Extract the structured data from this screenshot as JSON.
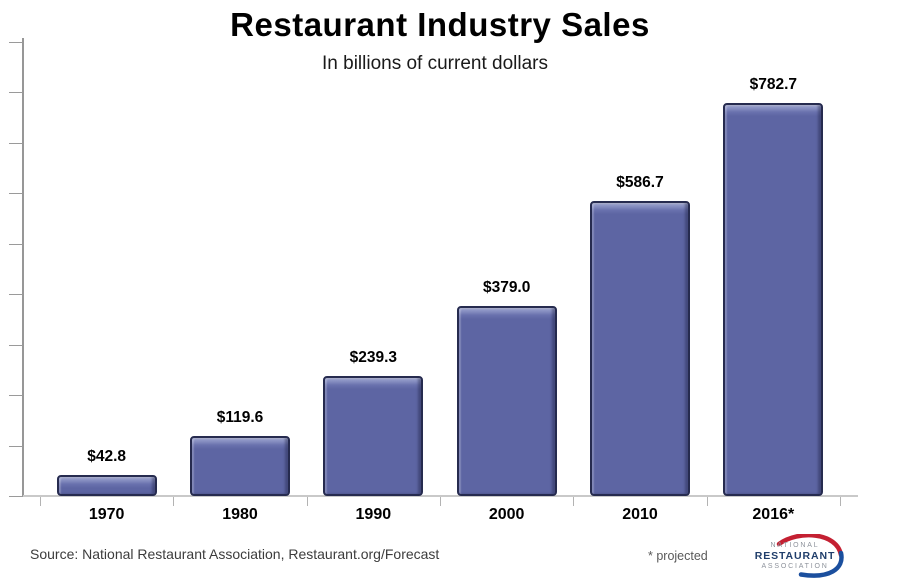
{
  "title": "Restaurant Industry Sales",
  "subtitle": "In billions of current dollars",
  "chart_data": {
    "type": "bar",
    "categories": [
      "1970",
      "1980",
      "1990",
      "2000",
      "2010",
      "2016*"
    ],
    "values": [
      42.8,
      119.6,
      239.3,
      379.0,
      586.7,
      782.7
    ],
    "value_labels": [
      "$42.8",
      "$119.6",
      "$239.3",
      "$379.0",
      "$586.7",
      "$782.7"
    ],
    "title": "Restaurant Industry Sales",
    "subtitle": "In billions of current dollars",
    "xlabel": "",
    "ylabel": "",
    "ylim": [
      0,
      900
    ],
    "y_tick_interval": 100,
    "y_tick_labels_shown": false,
    "grid": false,
    "legend": "none",
    "bar_color": "#5d65a3",
    "bar_highlight_color": "#9199c8",
    "bar_border_color": "#262b4f"
  },
  "footer": {
    "source": "Source: National Restaurant Association, Restaurant.org/Forecast",
    "projected_note": "* projected"
  },
  "logo": {
    "line1": "NATIONAL",
    "line2": "RESTAURANT",
    "line3": "ASSOCIATION",
    "red": "#c42032",
    "blue": "#1b4f9e",
    "navy": "#203e6b",
    "gray": "#8d929b"
  }
}
